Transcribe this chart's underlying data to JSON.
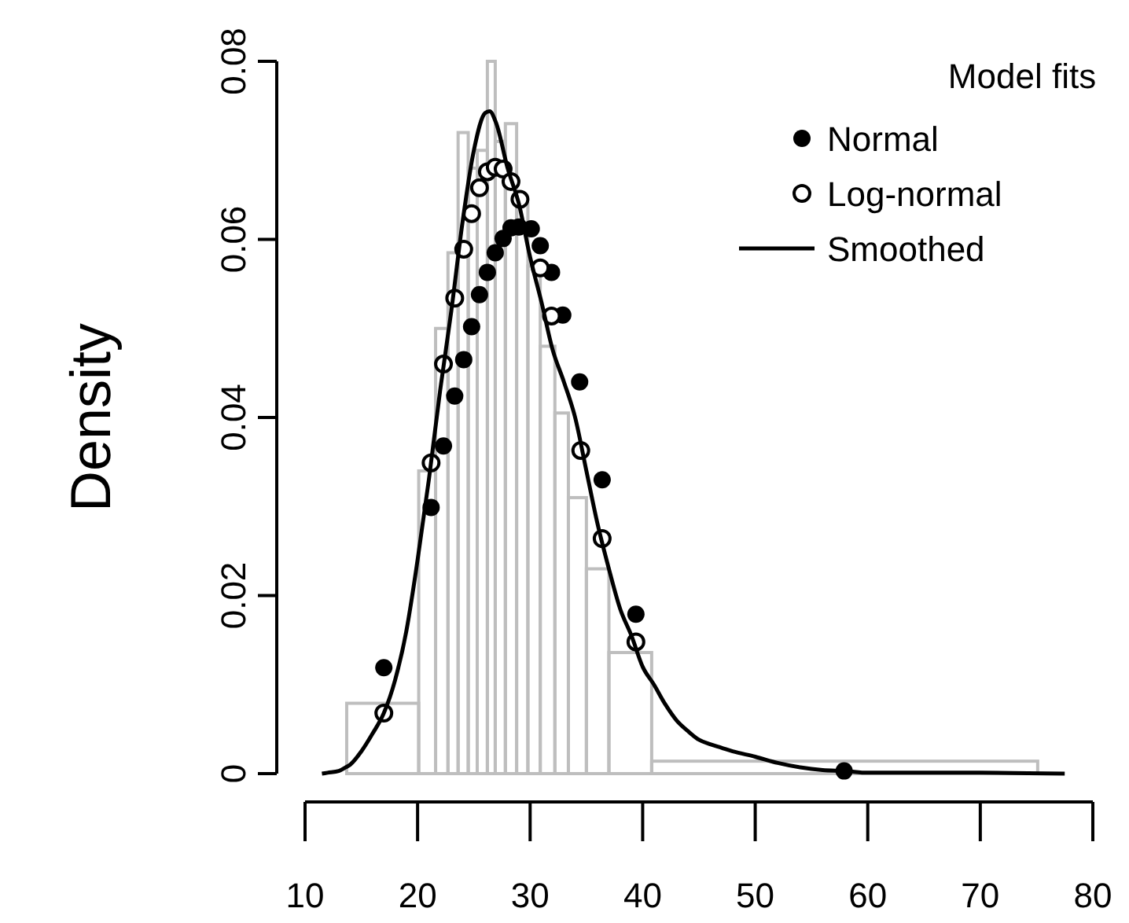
{
  "chart_data": {
    "type": "histogram",
    "ylabel": "Density",
    "legend_title": "Model fits",
    "legend": "top right",
    "grid": false,
    "xlim": [
      10,
      80
    ],
    "ylim": [
      0,
      0.08
    ],
    "xticks": [
      10,
      20,
      30,
      40,
      50,
      60,
      70,
      80
    ],
    "yticks": [
      0,
      0.02,
      0.04,
      0.06,
      0.08
    ],
    "bins": [
      13.7,
      20.1,
      21.6,
      22.7,
      23.6,
      24.5,
      25.3,
      26.2,
      26.9,
      27.8,
      28.8,
      29.8,
      30.9,
      32.2,
      33.4,
      35.0,
      37.0,
      40.8,
      75.1
    ],
    "values": [
      0.0079,
      0.034,
      0.05,
      0.0585,
      0.072,
      0.068,
      0.07,
      0.08,
      0.071,
      0.073,
      0.064,
      0.057,
      0.048,
      0.0405,
      0.031,
      0.023,
      0.0136,
      0.0014
    ],
    "color": "#bebebe",
    "series": [
      {
        "name": "Normal",
        "type": "scatter",
        "marker": "circle",
        "color": "#000000",
        "x": [
          17.0,
          21.2,
          22.3,
          23.3,
          24.1,
          24.8,
          25.5,
          26.2,
          26.9,
          27.6,
          28.3,
          29.0,
          30.1,
          30.9,
          31.9,
          32.9,
          34.4,
          36.4,
          39.4,
          57.9
        ],
        "values": [
          0.0119,
          0.0299,
          0.0368,
          0.0424,
          0.0465,
          0.0502,
          0.0538,
          0.0563,
          0.0585,
          0.0601,
          0.0613,
          0.0614,
          0.0612,
          0.0593,
          0.0563,
          0.0515,
          0.044,
          0.033,
          0.0179,
          0.0003
        ]
      },
      {
        "name": "Log-normal",
        "type": "scatter",
        "marker": "circle-open",
        "color": "#000000",
        "x": [
          17.0,
          21.2,
          22.3,
          23.3,
          24.1,
          24.8,
          25.5,
          26.2,
          26.9,
          27.6,
          28.3,
          29.1,
          30.9,
          31.9,
          34.5,
          36.4,
          39.4
        ],
        "values": [
          0.0068,
          0.0349,
          0.046,
          0.0534,
          0.0589,
          0.0629,
          0.0658,
          0.0676,
          0.0681,
          0.0679,
          0.0665,
          0.0645,
          0.0568,
          0.0514,
          0.0363,
          0.0264,
          0.0148
        ]
      },
      {
        "name": "Smoothed",
        "type": "line",
        "marker": "none",
        "line_style": "solid",
        "color": "#000000",
        "x": [
          11.5,
          12,
          13,
          13.6,
          14,
          15,
          16,
          17,
          18,
          19,
          20,
          21,
          22,
          23,
          24,
          25,
          26,
          26.4,
          27,
          28,
          29,
          30,
          31,
          32,
          33,
          34,
          35,
          36,
          37,
          38,
          39,
          40,
          41,
          42,
          43,
          44,
          45,
          46,
          47,
          48,
          50,
          52,
          54,
          56,
          58,
          60,
          65,
          70,
          77.5
        ],
        "values": [
          0,
          0.0001,
          0.0003,
          0.0007,
          0.001,
          0.0025,
          0.0045,
          0.0068,
          0.0105,
          0.016,
          0.024,
          0.033,
          0.043,
          0.052,
          0.062,
          0.07,
          0.0742,
          0.0744,
          0.073,
          0.068,
          0.064,
          0.058,
          0.053,
          0.0476,
          0.044,
          0.04,
          0.034,
          0.028,
          0.023,
          0.0185,
          0.0155,
          0.012,
          0.01,
          0.0078,
          0.006,
          0.0048,
          0.0038,
          0.0033,
          0.0029,
          0.0025,
          0.0019,
          0.0012,
          0.0007,
          0.0004,
          0.0003,
          0.0001,
          0.0001,
          0.0001,
          0
        ]
      }
    ]
  }
}
